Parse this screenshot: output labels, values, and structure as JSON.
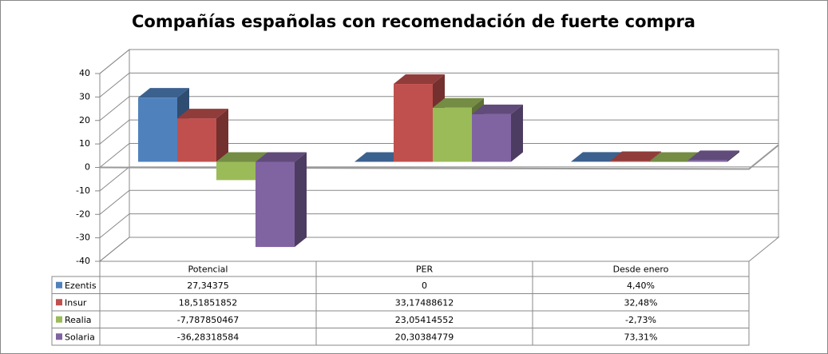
{
  "chart_data": {
    "type": "bar3d",
    "title": "Compañías españolas con recomendación de fuerte compra",
    "categories": [
      "Potencial",
      "PER",
      "Desde enero"
    ],
    "series": [
      {
        "name": "Ezentis",
        "color": "#4f81bd",
        "values": [
          27.34375,
          0,
          0.044
        ],
        "value_labels": [
          "27,34375",
          "0",
          "4,40%"
        ]
      },
      {
        "name": "Insur",
        "color": "#c0504d",
        "values": [
          18.51851852,
          33.17488612,
          0.3248
        ],
        "value_labels": [
          "18,51851852",
          "33,17488612",
          "32,48%"
        ]
      },
      {
        "name": "Realia",
        "color": "#9bbb59",
        "values": [
          -7.787850467,
          23.05414552,
          -0.0273
        ],
        "value_labels": [
          "-7,787850467",
          "23,05414552",
          "-2,73%"
        ]
      },
      {
        "name": "Solaria",
        "color": "#8064a2",
        "values": [
          -36.28318584,
          20.30384779,
          0.7331
        ],
        "value_labels": [
          "-36,28318584",
          "20,30384779",
          "73,31%"
        ]
      }
    ],
    "ylim": [
      -40,
      40
    ],
    "yticks": [
      -40,
      -30,
      -20,
      -10,
      0,
      10,
      20,
      30,
      40
    ],
    "grid": true
  }
}
